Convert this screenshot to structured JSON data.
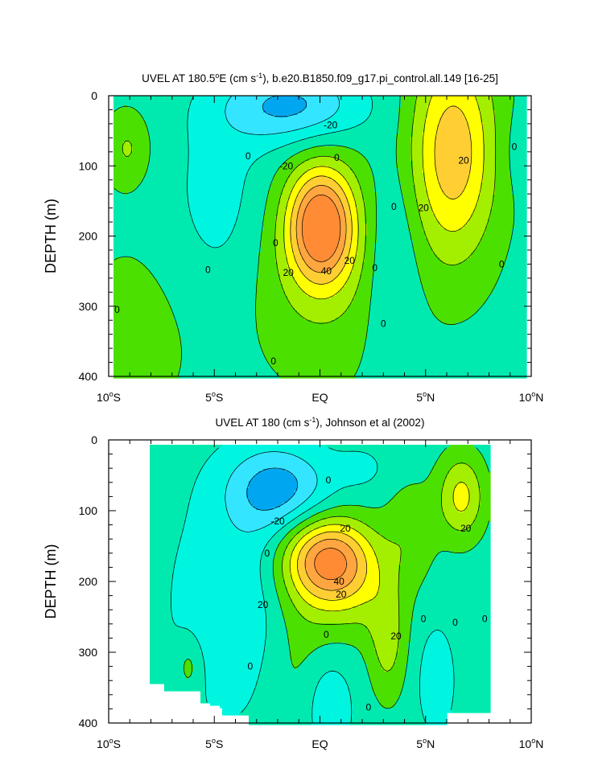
{
  "colors": {
    "c_neg30": "#00a7f0",
    "c_neg20": "#33e5ff",
    "c_neg10": "#00f5e0",
    "c_0": "#00eab0",
    "c_10": "#4ce000",
    "c_20": "#a4ee00",
    "c_30": "#ffff00",
    "c_40": "#ffce33",
    "c_50": "#ffa640",
    "c_60": "#ff8c35"
  },
  "chart_data": [
    {
      "type": "contour",
      "title": "UVEL AT 180.5°E (cm s⁻¹), b.e20.B1850.f09_g17.pi_control.all.149 [16-25]",
      "title_parts": {
        "pre": "UVEL AT 180.5",
        "deg": "o",
        "post": "E (cm s",
        "sup": "-1",
        "end": "), b.e20.B1850.f09_g17.pi_control.all.149 [16-25]"
      },
      "xlabel": "",
      "ylabel": "DEPTH (m)",
      "xlim": [
        -10,
        10
      ],
      "ylim": [
        0,
        400
      ],
      "y_inverted": true,
      "xticks": [
        {
          "value": -10,
          "num": "10",
          "deg": "o",
          "hemi": "S"
        },
        {
          "value": -5,
          "num": "5",
          "deg": "o",
          "hemi": "S"
        },
        {
          "value": 0,
          "num": "EQ",
          "deg": "",
          "hemi": ""
        },
        {
          "value": 5,
          "num": "5",
          "deg": "o",
          "hemi": "N"
        },
        {
          "value": 10,
          "num": "10",
          "deg": "o",
          "hemi": "N"
        }
      ],
      "yticks": [
        {
          "value": 0,
          "label": "0"
        },
        {
          "value": 100,
          "label": "100"
        },
        {
          "value": 200,
          "label": "200"
        },
        {
          "value": 300,
          "label": "300"
        },
        {
          "value": 400,
          "label": "400"
        }
      ],
      "contour_interval": 10,
      "data_extent": [
        -9.7,
        9.7
      ],
      "features": [
        {
          "name": "equatorial-undercurrent",
          "center_lat": 0.0,
          "center_depth": 180,
          "max_value": 60
        },
        {
          "name": "north-equatorial-countercurrent",
          "center_lat": 6.3,
          "center_depth": 60,
          "max_value": 40
        },
        {
          "name": "south-equatorial-current",
          "center_lat": -1.5,
          "center_depth": 30,
          "min_value": -30
        }
      ],
      "contour_labels": [
        {
          "text": "0",
          "lat": -3.4,
          "depth": 86
        },
        {
          "text": "0",
          "lat": -5.3,
          "depth": 248
        },
        {
          "text": "0",
          "lat": -9.6,
          "depth": 305
        },
        {
          "text": "-20",
          "lat": 0.5,
          "depth": 42
        },
        {
          "text": "-20",
          "lat": -1.6,
          "depth": 100
        },
        {
          "text": "0",
          "lat": 0.8,
          "depth": 88
        },
        {
          "text": "0",
          "lat": -2.1,
          "depth": 210
        },
        {
          "text": "20",
          "lat": -1.5,
          "depth": 252
        },
        {
          "text": "40",
          "lat": 0.3,
          "depth": 250
        },
        {
          "text": "20",
          "lat": 1.4,
          "depth": 235
        },
        {
          "text": "0",
          "lat": 2.6,
          "depth": 245
        },
        {
          "text": "0",
          "lat": 3.5,
          "depth": 158
        },
        {
          "text": "0",
          "lat": 3.0,
          "depth": 325
        },
        {
          "text": "0",
          "lat": -2.2,
          "depth": 378
        },
        {
          "text": "20",
          "lat": 4.9,
          "depth": 160
        },
        {
          "text": "20",
          "lat": 6.8,
          "depth": 92
        },
        {
          "text": "0",
          "lat": 9.2,
          "depth": 73
        },
        {
          "text": "0",
          "lat": 8.6,
          "depth": 240
        }
      ]
    },
    {
      "type": "contour",
      "title": "UVEL AT 180 (cm s⁻¹), Johnson et al (2002)",
      "title_parts": {
        "pre": "UVEL AT 180",
        "deg": "",
        "post": " (cm s",
        "sup": "-1",
        "end": "), Johnson et al (2002)"
      },
      "xlabel": "",
      "ylabel": "DEPTH (m)",
      "xlim": [
        -10,
        10
      ],
      "ylim": [
        0,
        400
      ],
      "y_inverted": true,
      "xticks": [
        {
          "value": -10,
          "num": "10",
          "deg": "o",
          "hemi": "S"
        },
        {
          "value": -5,
          "num": "5",
          "deg": "o",
          "hemi": "S"
        },
        {
          "value": 0,
          "num": "EQ",
          "deg": "",
          "hemi": ""
        },
        {
          "value": 5,
          "num": "5",
          "deg": "o",
          "hemi": "N"
        },
        {
          "value": 10,
          "num": "10",
          "deg": "o",
          "hemi": "N"
        }
      ],
      "yticks": [
        {
          "value": 0,
          "label": "0"
        },
        {
          "value": 100,
          "label": "100"
        },
        {
          "value": 200,
          "label": "200"
        },
        {
          "value": 300,
          "label": "300"
        },
        {
          "value": 400,
          "label": "400"
        }
      ],
      "contour_interval": 10,
      "data_extent": [
        -8,
        8
      ],
      "features": [
        {
          "name": "equatorial-undercurrent",
          "center_lat": 0.5,
          "center_depth": 165,
          "max_value": 60
        },
        {
          "name": "north-equatorial-countercurrent",
          "center_lat": 6.7,
          "center_depth": 80,
          "max_value": 30
        },
        {
          "name": "south-equatorial-current",
          "center_lat": -1.9,
          "center_depth": 70,
          "min_value": -30
        }
      ],
      "contour_labels": [
        {
          "text": "0",
          "lat": 0.4,
          "depth": 57
        },
        {
          "text": "-20",
          "lat": -2.0,
          "depth": 115
        },
        {
          "text": "20",
          "lat": 1.2,
          "depth": 125
        },
        {
          "text": "0",
          "lat": -2.5,
          "depth": 160
        },
        {
          "text": "40",
          "lat": 0.9,
          "depth": 200
        },
        {
          "text": "20",
          "lat": 1.0,
          "depth": 218
        },
        {
          "text": "20",
          "lat": -2.7,
          "depth": 233
        },
        {
          "text": "0",
          "lat": 0.3,
          "depth": 275
        },
        {
          "text": "20",
          "lat": 3.6,
          "depth": 277
        },
        {
          "text": "0",
          "lat": 4.9,
          "depth": 253
        },
        {
          "text": "0",
          "lat": 6.4,
          "depth": 258
        },
        {
          "text": "0",
          "lat": 7.8,
          "depth": 253
        },
        {
          "text": "0",
          "lat": -3.3,
          "depth": 320
        },
        {
          "text": "0",
          "lat": 2.3,
          "depth": 378
        },
        {
          "text": "20",
          "lat": 6.9,
          "depth": 125
        }
      ]
    }
  ]
}
